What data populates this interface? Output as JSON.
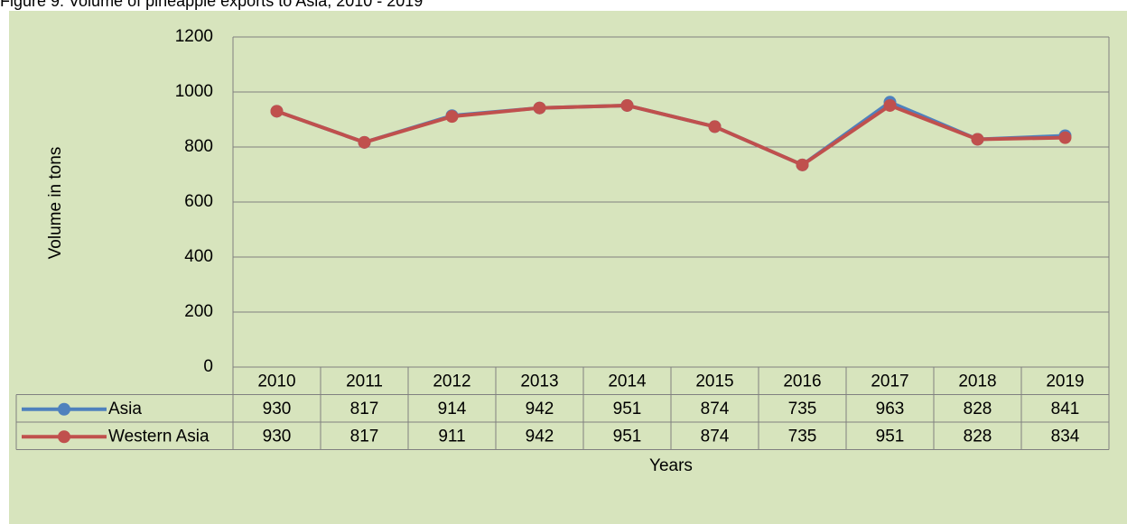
{
  "chart_data": {
    "type": "line",
    "title": "Figure 9: Volume of pineapple exports to Asia, 2010 - 2019",
    "x_label": "Years",
    "y_label": "Volume in tons",
    "categories": [
      "2010",
      "2011",
      "2012",
      "2013",
      "2014",
      "2015",
      "2016",
      "2017",
      "2018",
      "2019"
    ],
    "series": [
      {
        "name": "Asia",
        "color": "#4f81bd",
        "values": [
          930,
          817,
          914,
          942,
          951,
          874,
          735,
          963,
          828,
          841
        ]
      },
      {
        "name": "Western Asia",
        "color": "#c0504d",
        "values": [
          930,
          817,
          911,
          942,
          951,
          874,
          735,
          951,
          828,
          834
        ]
      }
    ],
    "ylim": [
      0,
      1200
    ],
    "yticks": [
      0,
      200,
      400,
      600,
      800,
      1000,
      1200
    ],
    "grid": true
  }
}
